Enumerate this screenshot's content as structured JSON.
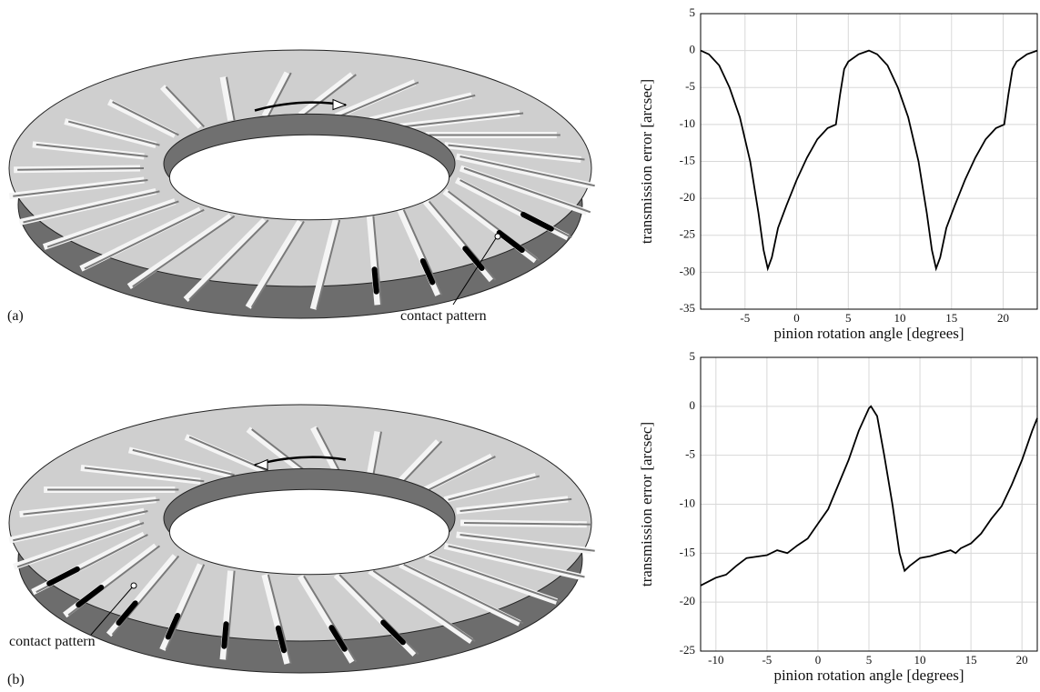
{
  "panels": [
    {
      "label": "(a)",
      "annotation": "contact pattern"
    },
    {
      "label": "(b)",
      "annotation": "contact pattern"
    }
  ],
  "chart_data": [
    {
      "type": "line",
      "xlabel": "pinion rotation angle [degrees]",
      "ylabel": "transmission error [arcsec]",
      "color": "#000000",
      "grid": true,
      "xlim": [
        -9.3,
        23.3
      ],
      "ylim": [
        -35,
        5
      ],
      "xticks": [
        -5,
        0,
        5,
        10,
        15,
        20
      ],
      "yticks": [
        -35,
        -30,
        -25,
        -20,
        -15,
        -10,
        -5,
        0,
        5
      ],
      "x": [
        -9.3,
        -8.5,
        -7.5,
        -6.5,
        -5.5,
        -4.5,
        -3.7,
        -3.2,
        -2.8,
        -2.4,
        -1.8,
        -1,
        0,
        1,
        2,
        3,
        3.8,
        4.2,
        4.6,
        5,
        6,
        7,
        7.8,
        8.8,
        9.8,
        10.8,
        11.8,
        12.6,
        13.1,
        13.5,
        13.9,
        14.5,
        15.3,
        16.3,
        17.3,
        18.3,
        19.3,
        20.1,
        20.5,
        20.9,
        21.3,
        22.3,
        23.3
      ],
      "values": [
        0,
        -0.5,
        -2,
        -5,
        -9,
        -15,
        -22,
        -27,
        -29.5,
        -28,
        -24,
        -21,
        -17.5,
        -14.5,
        -12,
        -10.5,
        -10,
        -6,
        -2.5,
        -1.5,
        -0.5,
        0,
        -0.5,
        -2,
        -5,
        -9,
        -15,
        -22,
        -27,
        -29.5,
        -28,
        -24,
        -21,
        -17.5,
        -14.5,
        -12,
        -10.5,
        -10,
        -6,
        -2.5,
        -1.5,
        -0.5,
        0
      ]
    },
    {
      "type": "line",
      "xlabel": "pinion rotation angle [degrees]",
      "ylabel": "transmission error [arcsec]",
      "color": "#000000",
      "grid": true,
      "xlim": [
        -11.5,
        21.5
      ],
      "ylim": [
        -25,
        5
      ],
      "xticks": [
        -10,
        -5,
        0,
        5,
        10,
        15,
        20
      ],
      "yticks": [
        -25,
        -20,
        -15,
        -10,
        -5,
        0,
        5
      ],
      "x": [
        -11.5,
        -10,
        -9,
        -8,
        -7,
        -5,
        -4,
        -3,
        -2,
        -1,
        0,
        1,
        2,
        3,
        4,
        5,
        5.2,
        5.8,
        6.5,
        7.3,
        8,
        8.5,
        9,
        10,
        11,
        12,
        13,
        13.5,
        14,
        15,
        16,
        17,
        18,
        19,
        20,
        21,
        21.5
      ],
      "values": [
        -18.3,
        -17.5,
        -17.2,
        -16.3,
        -15.5,
        -15.2,
        -14.7,
        -15,
        -14.2,
        -13.5,
        -12,
        -10.5,
        -8,
        -5.5,
        -2.5,
        -0.2,
        0,
        -1,
        -5,
        -10,
        -15,
        -16.8,
        -16.3,
        -15.5,
        -15.3,
        -15,
        -14.7,
        -15,
        -14.5,
        -14,
        -13,
        -11.5,
        -10.2,
        -8,
        -5.5,
        -2.5,
        -1.2
      ]
    }
  ]
}
